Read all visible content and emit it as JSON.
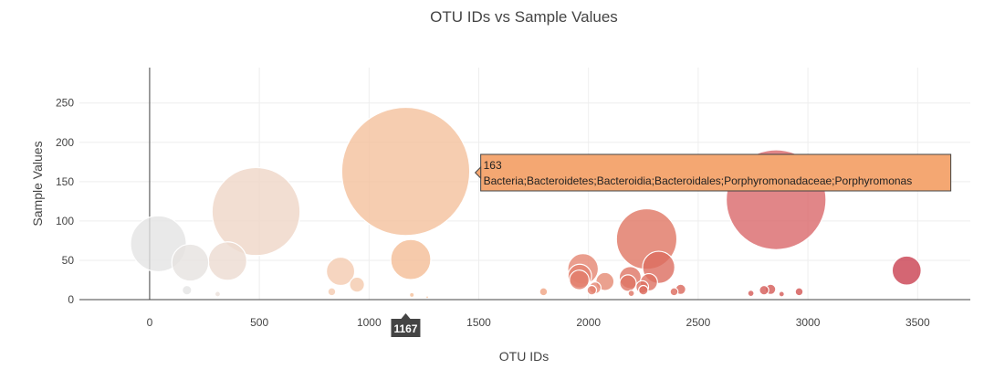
{
  "chart_data": {
    "type": "scatter",
    "title": "OTU IDs vs Sample Values",
    "xlabel": "OTU IDs",
    "ylabel": "Sample Values",
    "xlim": [
      -320,
      3740
    ],
    "ylim": [
      0,
      295
    ],
    "x_ticks": [
      0,
      500,
      1000,
      1500,
      2000,
      2500,
      3000,
      3500
    ],
    "y_ticks": [
      0,
      50,
      100,
      150,
      200,
      250
    ],
    "grid": true,
    "marker_size_encodes": "sample value",
    "colorscale_endpoints": [
      "#e3e3e3",
      "#f4b184",
      "#c83f4e"
    ],
    "points": [
      {
        "x": 40,
        "y": 71,
        "color": "#e4e4e4"
      },
      {
        "x": 185,
        "y": 47,
        "color": "#e6e2e0"
      },
      {
        "x": 170,
        "y": 12,
        "color": "#e4e4e4"
      },
      {
        "x": 355,
        "y": 49,
        "color": "#ecdbd1"
      },
      {
        "x": 485,
        "y": 112,
        "color": "#efd6c7"
      },
      {
        "x": 310,
        "y": 7,
        "color": "#ebe0da"
      },
      {
        "x": 870,
        "y": 36,
        "color": "#f4cbb0"
      },
      {
        "x": 945,
        "y": 19,
        "color": "#f4c9ac"
      },
      {
        "x": 830,
        "y": 10,
        "color": "#f4cbb0"
      },
      {
        "x": 1167,
        "y": 163,
        "color": "#f4c09c"
      },
      {
        "x": 1190,
        "y": 51,
        "color": "#f4bd96"
      },
      {
        "x": 1195,
        "y": 6,
        "color": "#f4bf9a"
      },
      {
        "x": 1265,
        "y": 3,
        "color": "#f4bf9a"
      },
      {
        "x": 1795,
        "y": 10,
        "color": "#f0a483"
      },
      {
        "x": 1975,
        "y": 39,
        "color": "#e58672"
      },
      {
        "x": 1960,
        "y": 30,
        "color": "#e38270"
      },
      {
        "x": 1958,
        "y": 25,
        "color": "#e27e6d"
      },
      {
        "x": 2075,
        "y": 23,
        "color": "#e58a73"
      },
      {
        "x": 2015,
        "y": 12,
        "color": "#e3806e"
      },
      {
        "x": 2030,
        "y": 15,
        "color": "#e58672"
      },
      {
        "x": 2265,
        "y": 77,
        "color": "#e07663"
      },
      {
        "x": 2320,
        "y": 41,
        "color": "#dc6d5f"
      },
      {
        "x": 2190,
        "y": 28,
        "color": "#df7464"
      },
      {
        "x": 2180,
        "y": 21,
        "color": "#df7464"
      },
      {
        "x": 2275,
        "y": 22,
        "color": "#dd7062"
      },
      {
        "x": 2245,
        "y": 16,
        "color": "#dd7062"
      },
      {
        "x": 2250,
        "y": 12,
        "color": "#dc6d5f"
      },
      {
        "x": 2195,
        "y": 8,
        "color": "#df7464"
      },
      {
        "x": 2390,
        "y": 10,
        "color": "#dc6a5c"
      },
      {
        "x": 2420,
        "y": 13,
        "color": "#da665a"
      },
      {
        "x": 2855,
        "y": 127,
        "color": "#d9686a"
      },
      {
        "x": 2800,
        "y": 12,
        "color": "#d55a56"
      },
      {
        "x": 2830,
        "y": 13,
        "color": "#d55a56"
      },
      {
        "x": 2740,
        "y": 8,
        "color": "#d55a56"
      },
      {
        "x": 2960,
        "y": 10,
        "color": "#d35553"
      },
      {
        "x": 2880,
        "y": 7,
        "color": "#d55a56"
      },
      {
        "x": 3450,
        "y": 37,
        "color": "#c94050"
      }
    ],
    "hover": {
      "x_label": "1167",
      "y_value": "163",
      "otu_label": "Bacteria;Bacteroidetes;Bacteroidia;Bacteroidales;Porphyromonadaceae;Porphyromonas",
      "box_color": "#f4a772"
    }
  }
}
